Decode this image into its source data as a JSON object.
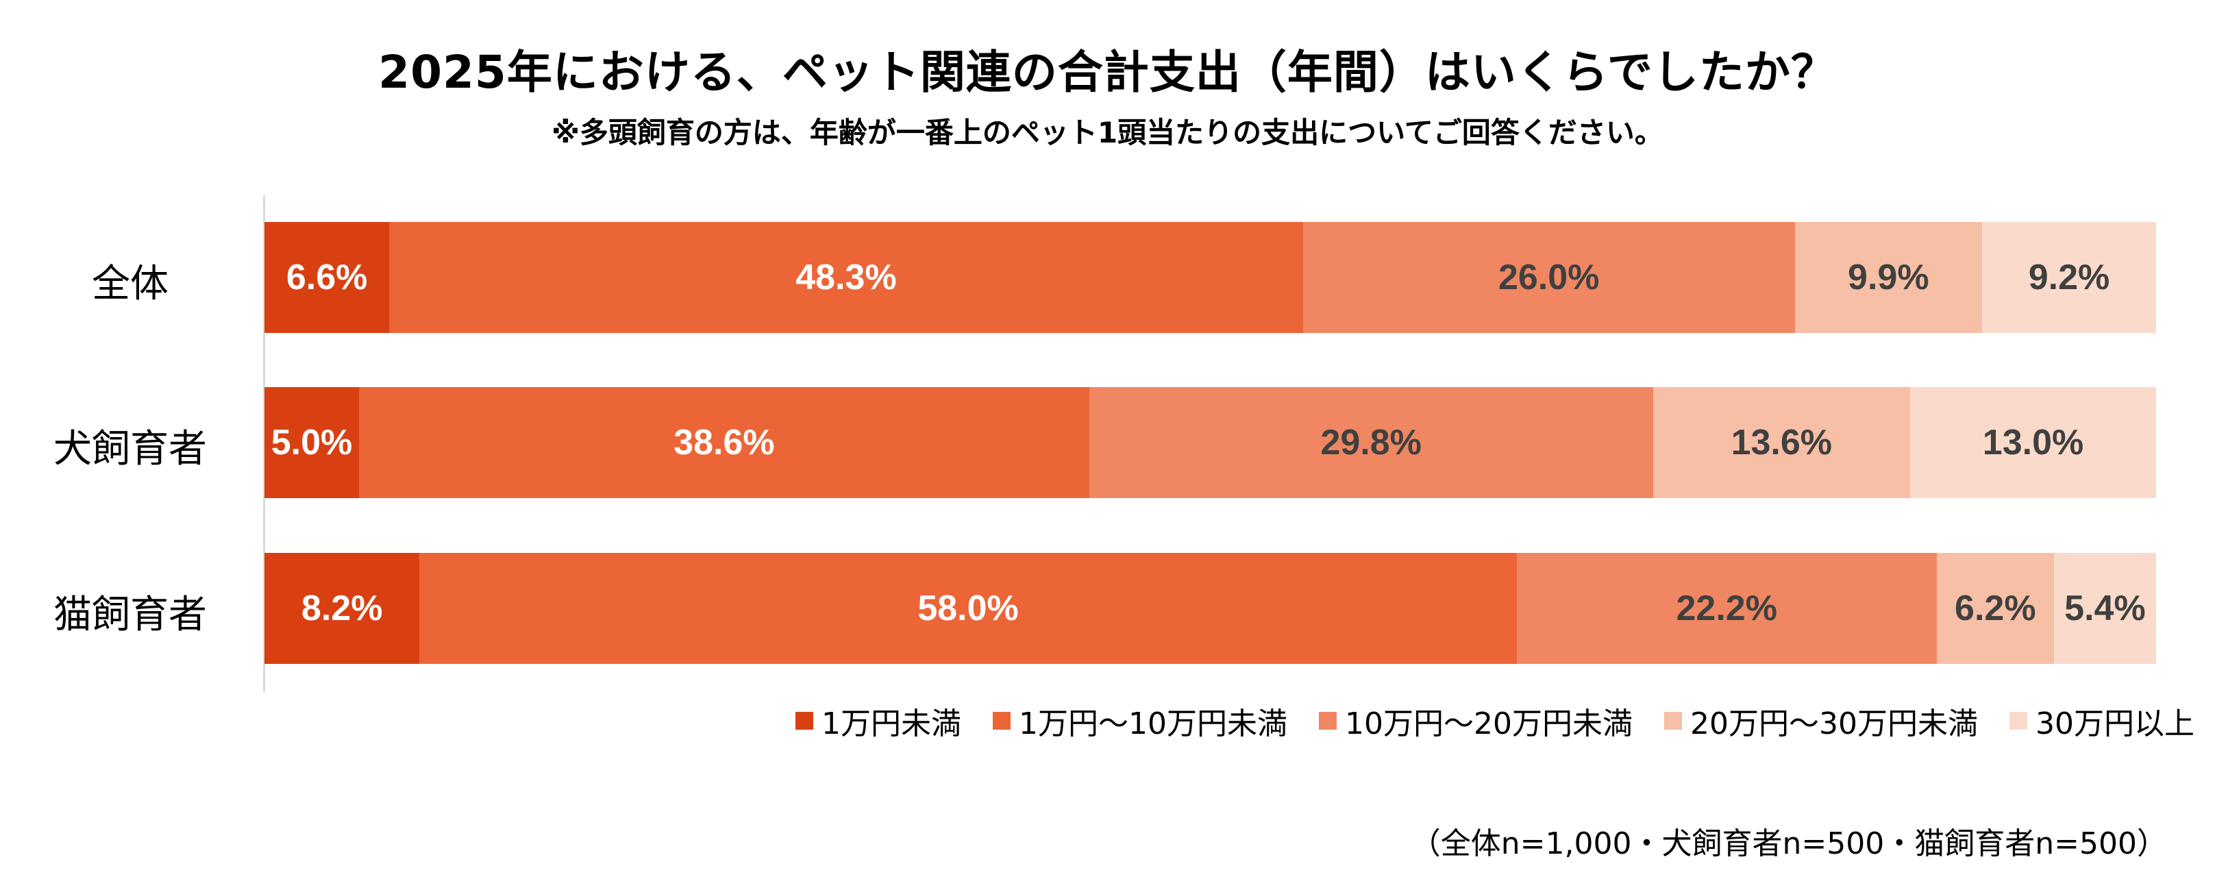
{
  "chart_data": {
    "type": "bar",
    "orientation": "horizontal-stacked-100",
    "title": "2025年における、ペット関連の合計支出（年間）はいくらでしたか？",
    "subtitle": "※多頭飼育の方は、年齢が一番上のペット1頭当たりの支出についてご回答ください。",
    "categories": [
      "全体",
      "犬飼育者",
      "猫飼育者"
    ],
    "series": [
      {
        "name": "1万円未満",
        "color": "#D84012",
        "label_color": "#FFFFFF",
        "values": [
          6.6,
          5.0,
          8.2
        ],
        "labels": [
          "6.6%",
          "5.0%",
          "8.2%"
        ]
      },
      {
        "name": "1万円～10万円未満",
        "color": "#EB6537",
        "label_color": "#FFFFFF",
        "values": [
          48.3,
          38.6,
          58.0
        ],
        "labels": [
          "48.3%",
          "38.6%",
          "58.0%"
        ]
      },
      {
        "name": "10万円～20万円未満",
        "color": "#F08762",
        "label_color": "#404040",
        "values": [
          26.0,
          29.8,
          22.2
        ],
        "labels": [
          "26.0%",
          "29.8%",
          "22.2%"
        ]
      },
      {
        "name": "20万円～30万円未満",
        "color": "#F6BFA6",
        "label_color": "#404040",
        "values": [
          9.9,
          13.6,
          6.2
        ],
        "labels": [
          "9.9%",
          "13.6%",
          "6.2%"
        ]
      },
      {
        "name": "30万円以上",
        "color": "#FADBCB",
        "label_color": "#404040",
        "values": [
          9.2,
          13.0,
          5.4
        ],
        "labels": [
          "9.2%",
          "13.0%",
          "5.4%"
        ]
      }
    ],
    "xlim": [
      0,
      100
    ],
    "grid": false,
    "legend_position": "bottom-right",
    "note": "（全体n=1,000・犬飼育者n=500・猫飼育者n=500）"
  }
}
